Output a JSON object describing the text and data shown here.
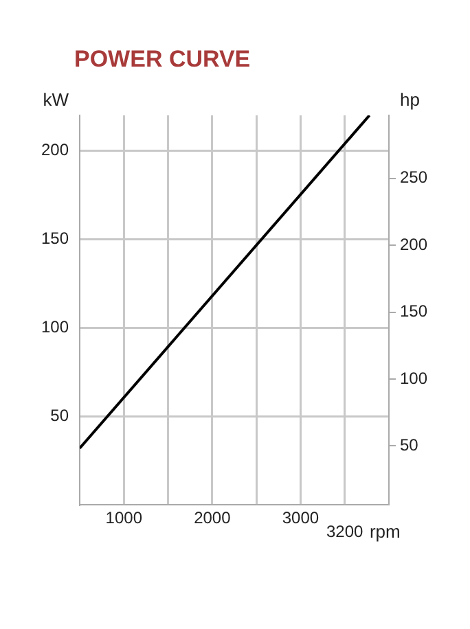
{
  "chart_data": {
    "type": "line",
    "title": "POWER CURVE",
    "xlabel": "rpm",
    "ylabel": "kW",
    "y2label": "hp",
    "x": [
      500,
      3780
    ],
    "series": [
      {
        "color": "#000000",
        "values": [
          32,
          220
        ]
      }
    ],
    "xlim": [
      500,
      4000
    ],
    "xticks": [
      1000,
      {
        "value": 1500,
        "label": null
      },
      2000,
      {
        "value": 2500,
        "label": null
      },
      3000,
      {
        "value": 3500,
        "label": null
      }
    ],
    "ylim": [
      0,
      220
    ],
    "yticks": [
      50,
      100,
      150,
      200
    ],
    "y2lim": [
      6,
      297
    ],
    "y2ticks": [
      50,
      100,
      150,
      200,
      250
    ],
    "annotations": [
      "3200"
    ],
    "grid": true,
    "marker": "none",
    "line_style": "solid"
  }
}
